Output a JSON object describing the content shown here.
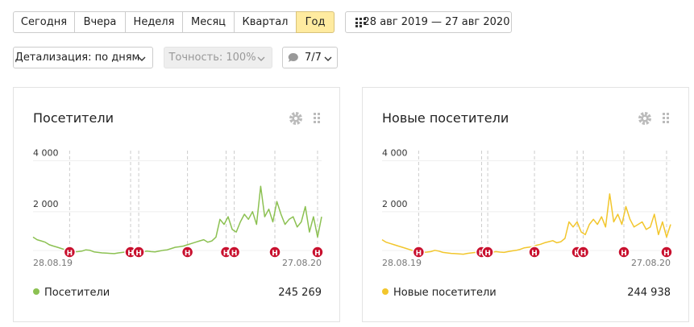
{
  "toolbar": {
    "periods": [
      "Сегодня",
      "Вчера",
      "Неделя",
      "Месяц",
      "Квартал",
      "Год"
    ],
    "date_range": "28 авг 2019 — 27 авг 2020",
    "detail": "Детализация: по дням",
    "accuracy": "Точность: 100%",
    "comments": "7/7"
  },
  "chart_data": [
    {
      "type": "line",
      "title": "Посетители",
      "total": "245 269",
      "x_labels": [
        "28.08.19",
        "27.08.20"
      ],
      "ylim": [
        0,
        4400
      ],
      "yticks": [
        {
          "value": 2000,
          "label": "2 000"
        },
        {
          "value": 4000,
          "label": "4 000"
        }
      ],
      "annotations": [
        {
          "x": 9,
          "label": "Н"
        },
        {
          "x": 24,
          "label": "Н"
        },
        {
          "x": 26,
          "label": "Н"
        },
        {
          "x": 38,
          "label": "Н"
        },
        {
          "x": 47.5,
          "label": "Н"
        },
        {
          "x": 49.5,
          "label": "Н"
        },
        {
          "x": 59.5,
          "label": "Н"
        },
        {
          "x": 70,
          "label": "Н"
        }
      ],
      "series": [
        {
          "name": "Посетители",
          "color": "#8cc152",
          "values": [
            1000,
            900,
            850,
            800,
            700,
            650,
            600,
            550,
            500,
            450,
            420,
            430,
            450,
            500,
            480,
            420,
            400,
            380,
            370,
            360,
            350,
            380,
            400,
            420,
            400,
            380,
            400,
            420,
            450,
            430,
            420,
            450,
            480,
            500,
            550,
            600,
            620,
            650,
            700,
            750,
            800,
            850,
            900,
            800,
            850,
            1000,
            1700,
            1500,
            1800,
            1300,
            1200,
            1600,
            1900,
            1700,
            2000,
            1500,
            3000,
            1800,
            2100,
            1600,
            2400,
            1900,
            1500,
            1700,
            1800,
            1400,
            1600,
            2200,
            1200,
            1800,
            1000,
            1800
          ]
        }
      ]
    },
    {
      "type": "line",
      "title": "Новые посетители",
      "total": "244 938",
      "x_labels": [
        "28.08.19",
        "27.08.20"
      ],
      "ylim": [
        0,
        4400
      ],
      "yticks": [
        {
          "value": 2000,
          "label": "2 000"
        },
        {
          "value": 4000,
          "label": "4 000"
        }
      ],
      "annotations": [
        {
          "x": 9,
          "label": "Н"
        },
        {
          "x": 24.5,
          "label": "Н"
        },
        {
          "x": 26,
          "label": "Н"
        },
        {
          "x": 37.5,
          "label": "Н"
        },
        {
          "x": 48,
          "label": "Н"
        },
        {
          "x": 49.5,
          "label": "Н"
        },
        {
          "x": 59.5,
          "label": "Н"
        },
        {
          "x": 70,
          "label": "Н"
        }
      ],
      "series": [
        {
          "name": "Новые посетители",
          "color": "#f2c62c",
          "values": [
            900,
            800,
            750,
            700,
            650,
            600,
            550,
            500,
            450,
            420,
            400,
            410,
            430,
            480,
            450,
            400,
            380,
            360,
            350,
            340,
            330,
            360,
            380,
            400,
            380,
            360,
            380,
            400,
            430,
            410,
            400,
            430,
            460,
            480,
            520,
            580,
            600,
            620,
            680,
            720,
            780,
            820,
            860,
            780,
            820,
            950,
            1600,
            1400,
            1600,
            1200,
            1100,
            1500,
            1700,
            1500,
            1800,
            1400,
            2700,
            1600,
            1900,
            1500,
            2200,
            1700,
            1400,
            1500,
            1600,
            1300,
            1400,
            1900,
            1100,
            1600,
            1000,
            1500
          ]
        }
      ]
    }
  ]
}
